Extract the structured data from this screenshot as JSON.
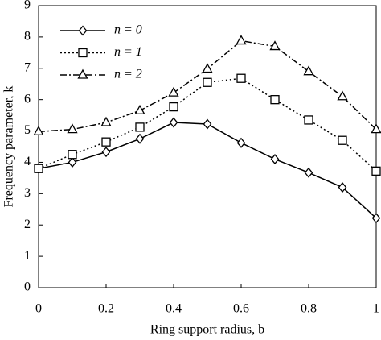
{
  "chart_data": {
    "type": "line",
    "x_label": "Ring support radius, b",
    "y_label": "Frequency parameter, k",
    "x": [
      0,
      0.1,
      0.2,
      0.3,
      0.4,
      0.5,
      0.6,
      0.7,
      0.8,
      0.9,
      1
    ],
    "series": [
      {
        "name": "n = 0",
        "color": "#000000",
        "marker": "diamond",
        "dash": "solid",
        "values": [
          3.8,
          4.0,
          4.33,
          4.75,
          5.27,
          5.22,
          4.62,
          4.1,
          3.67,
          3.2,
          2.22
        ]
      },
      {
        "name": "n = 1",
        "color": "#000000",
        "marker": "square",
        "dash": "dotted",
        "values": [
          3.8,
          4.25,
          4.65,
          5.12,
          5.77,
          6.55,
          6.68,
          6.0,
          5.35,
          4.7,
          3.72
        ]
      },
      {
        "name": "n = 2",
        "color": "#000000",
        "marker": "triangle",
        "dash": "dashdot",
        "values": [
          4.98,
          5.05,
          5.27,
          5.65,
          6.22,
          6.98,
          7.88,
          7.7,
          6.9,
          6.1,
          5.05
        ]
      }
    ],
    "xlim": [
      0,
      1
    ],
    "xticks": [
      0,
      0.2,
      0.4,
      0.6,
      0.8,
      1
    ],
    "ylim": [
      0,
      9
    ],
    "yticks": [
      0,
      1,
      2,
      3,
      4,
      5,
      6,
      7,
      8,
      9
    ],
    "legend": "top-left",
    "grid": false
  }
}
